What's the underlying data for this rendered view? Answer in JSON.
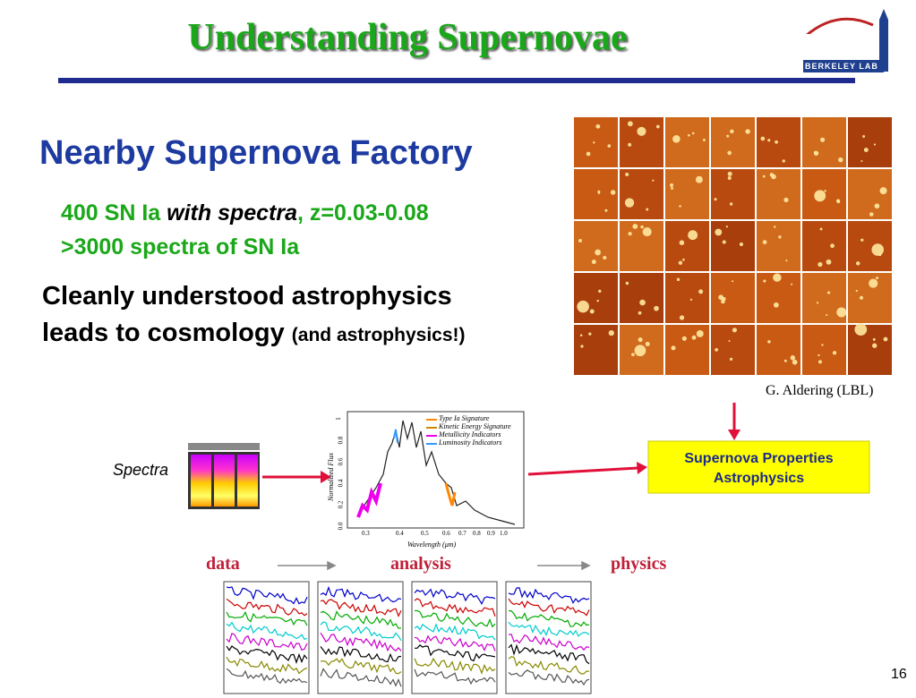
{
  "header": {
    "title": "Understanding Supernovae",
    "logo": "BERKELEY LAB"
  },
  "body": {
    "heading": "Nearby Supernova Factory",
    "sub_bullet_1": {
      "text": "400 SN Ia",
      "emphasis": "with spectra",
      "suffix": ", z=0.03-0.08"
    },
    "sub_bullet_2": ">3000 spectra of SN Ia",
    "statement": {
      "line1": "Cleanly understood astrophysics",
      "line2": "leads to cosmology",
      "note": "(and astrophysics!)"
    }
  },
  "image_credit": "G. Aldering (LBL)",
  "properties_box": {
    "line1": "Supernova Properties",
    "line2": "Astrophysics"
  },
  "spectra_label": "Spectra",
  "spectrum_plot": {
    "legend": [
      "Type Ia Signature",
      "Kinetic Energy Signature",
      "Metallicity Indicators",
      "Luminosity Indicators"
    ],
    "y_label": "Normalized Flux",
    "x_label": "Wavelength (μm)",
    "xticks": [
      "0.3",
      "0.4",
      "0.5",
      "0.6",
      "0.7",
      "0.8",
      "0.9",
      "1.0"
    ],
    "yticks": [
      "0.0",
      "0.2",
      "0.4",
      "0.6",
      "0.8",
      "1"
    ]
  },
  "pipeline": [
    "data",
    "analysis",
    "physics"
  ],
  "page_number": "16"
}
